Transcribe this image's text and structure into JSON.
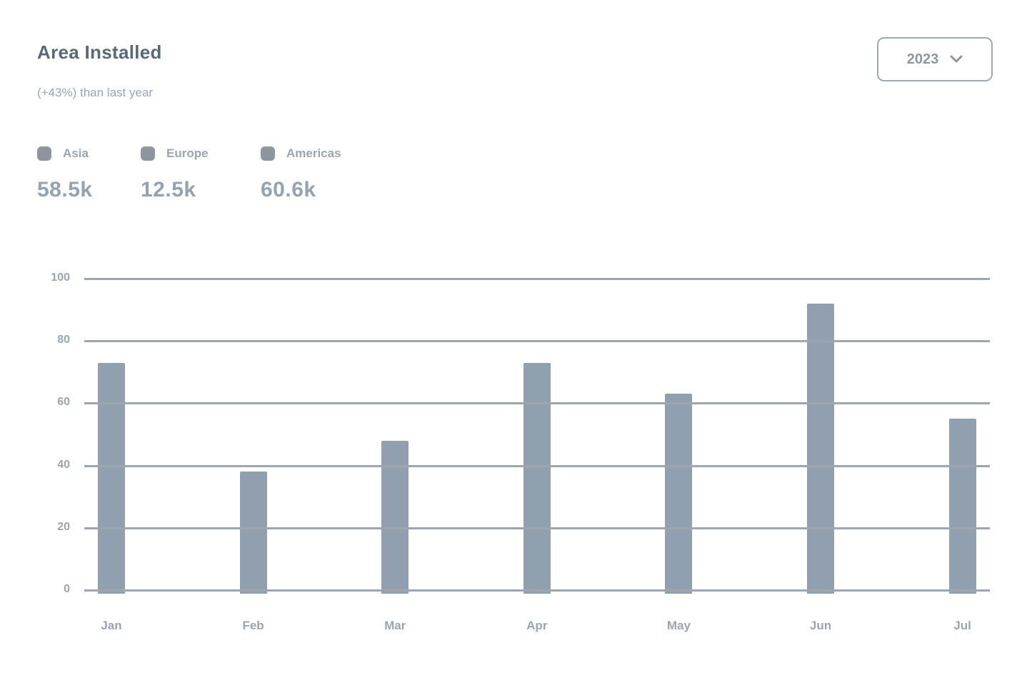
{
  "header": {
    "title": "Area Installed",
    "subtitle": "(+43%) than last year",
    "year_button": {
      "label": "2023",
      "icon": "chevron-down-icon"
    }
  },
  "legend": {
    "items": [
      {
        "label": "Asia",
        "value": "58.5k"
      },
      {
        "label": "Europe",
        "value": "12.5k"
      },
      {
        "label": "Americas",
        "value": "60.6k"
      }
    ]
  },
  "chart_data": {
    "type": "bar",
    "title": "Area Installed",
    "subtitle": "(+43%) than last year",
    "categories": [
      "Jan",
      "Feb",
      "Mar",
      "Apr",
      "May",
      "Jun",
      "Jul"
    ],
    "values": [
      73,
      38,
      48,
      73,
      63,
      92,
      55
    ],
    "ylim": [
      0,
      100
    ],
    "yticks": [
      0,
      20,
      40,
      60,
      80,
      100
    ],
    "grid": true,
    "legend_entries": [
      "Asia",
      "Europe",
      "Americas"
    ],
    "legend_position": "top-left",
    "xlabel": "",
    "ylabel": ""
  },
  "colors": {
    "background": "#ffffff",
    "bar": "#91a0af",
    "gridline": "#9da6ae",
    "title_text": "#5b6875",
    "muted_text": "#9aa5b1",
    "value_text": "#95a2b0",
    "button_border": "#a0a8b0",
    "button_text": "#8d97a0",
    "legend_dot": "#8e959d"
  }
}
